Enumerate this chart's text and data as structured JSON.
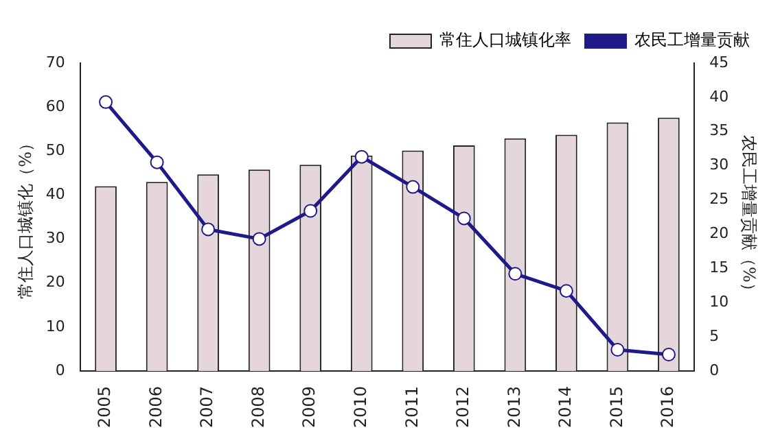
{
  "chart_data": {
    "type": "bar",
    "categories": [
      "2005",
      "2006",
      "2007",
      "2008",
      "2009",
      "2010",
      "2011",
      "2012",
      "2013",
      "2014",
      "2015",
      "2016"
    ],
    "series": [
      {
        "name": "常住人口城镇化率",
        "color": "#e4d6da",
        "values": [
          42.0,
          43.0,
          44.7,
          45.8,
          46.9,
          49.0,
          50.1,
          51.3,
          52.9,
          53.7,
          56.5,
          57.6
        ]
      },
      {
        "name": "农民工增量贡献",
        "type": "line",
        "axis": "y2",
        "color": "#1f1a8a",
        "values": [
          39.3,
          30.5,
          20.7,
          19.3,
          23.4,
          31.3,
          26.9,
          22.3,
          14.2,
          11.7,
          3.1,
          2.4
        ]
      }
    ],
    "ylabel": "常住人口城镇化（%）",
    "y2label": "农民工增量贡献（%）",
    "ylim": [
      0,
      70
    ],
    "yticks": [
      0,
      10,
      20,
      30,
      40,
      50,
      60,
      70
    ],
    "y2lim": [
      0,
      45
    ],
    "y2ticks": [
      0,
      5,
      10,
      15,
      20,
      25,
      30,
      35,
      40,
      45
    ],
    "grid": false,
    "legend": "top right",
    "marker": "circle"
  }
}
